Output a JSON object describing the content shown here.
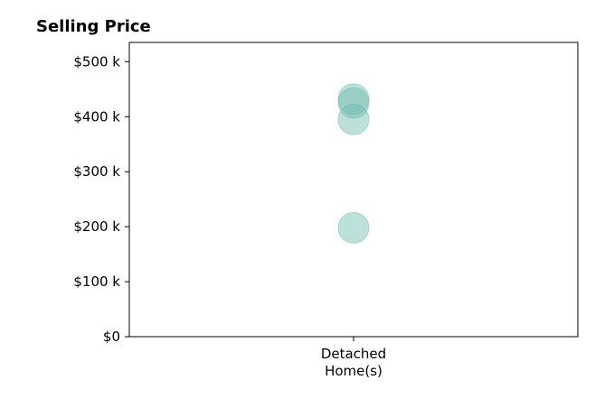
{
  "chart_data": {
    "type": "scatter",
    "title": "Selling Price",
    "xlabel": "",
    "ylabel": "",
    "categories": [
      "Detached\nHome(s)"
    ],
    "points": [
      {
        "category": "Detached\nHome(s)",
        "value": 432000
      },
      {
        "category": "Detached\nHome(s)",
        "value": 425000
      },
      {
        "category": "Detached\nHome(s)",
        "value": 395000
      },
      {
        "category": "Detached\nHome(s)",
        "value": 198000
      }
    ],
    "ylim": [
      0,
      535000
    ],
    "yticks": [
      0,
      100000,
      200000,
      300000,
      400000,
      500000
    ],
    "ytick_labels": [
      "$0",
      "$100 k",
      "$200 k",
      "$300 k",
      "$400 k",
      "$500 k"
    ],
    "grid": false,
    "legend": "none",
    "marker_color": "#6dbbb0",
    "marker_opacity": 0.45
  }
}
